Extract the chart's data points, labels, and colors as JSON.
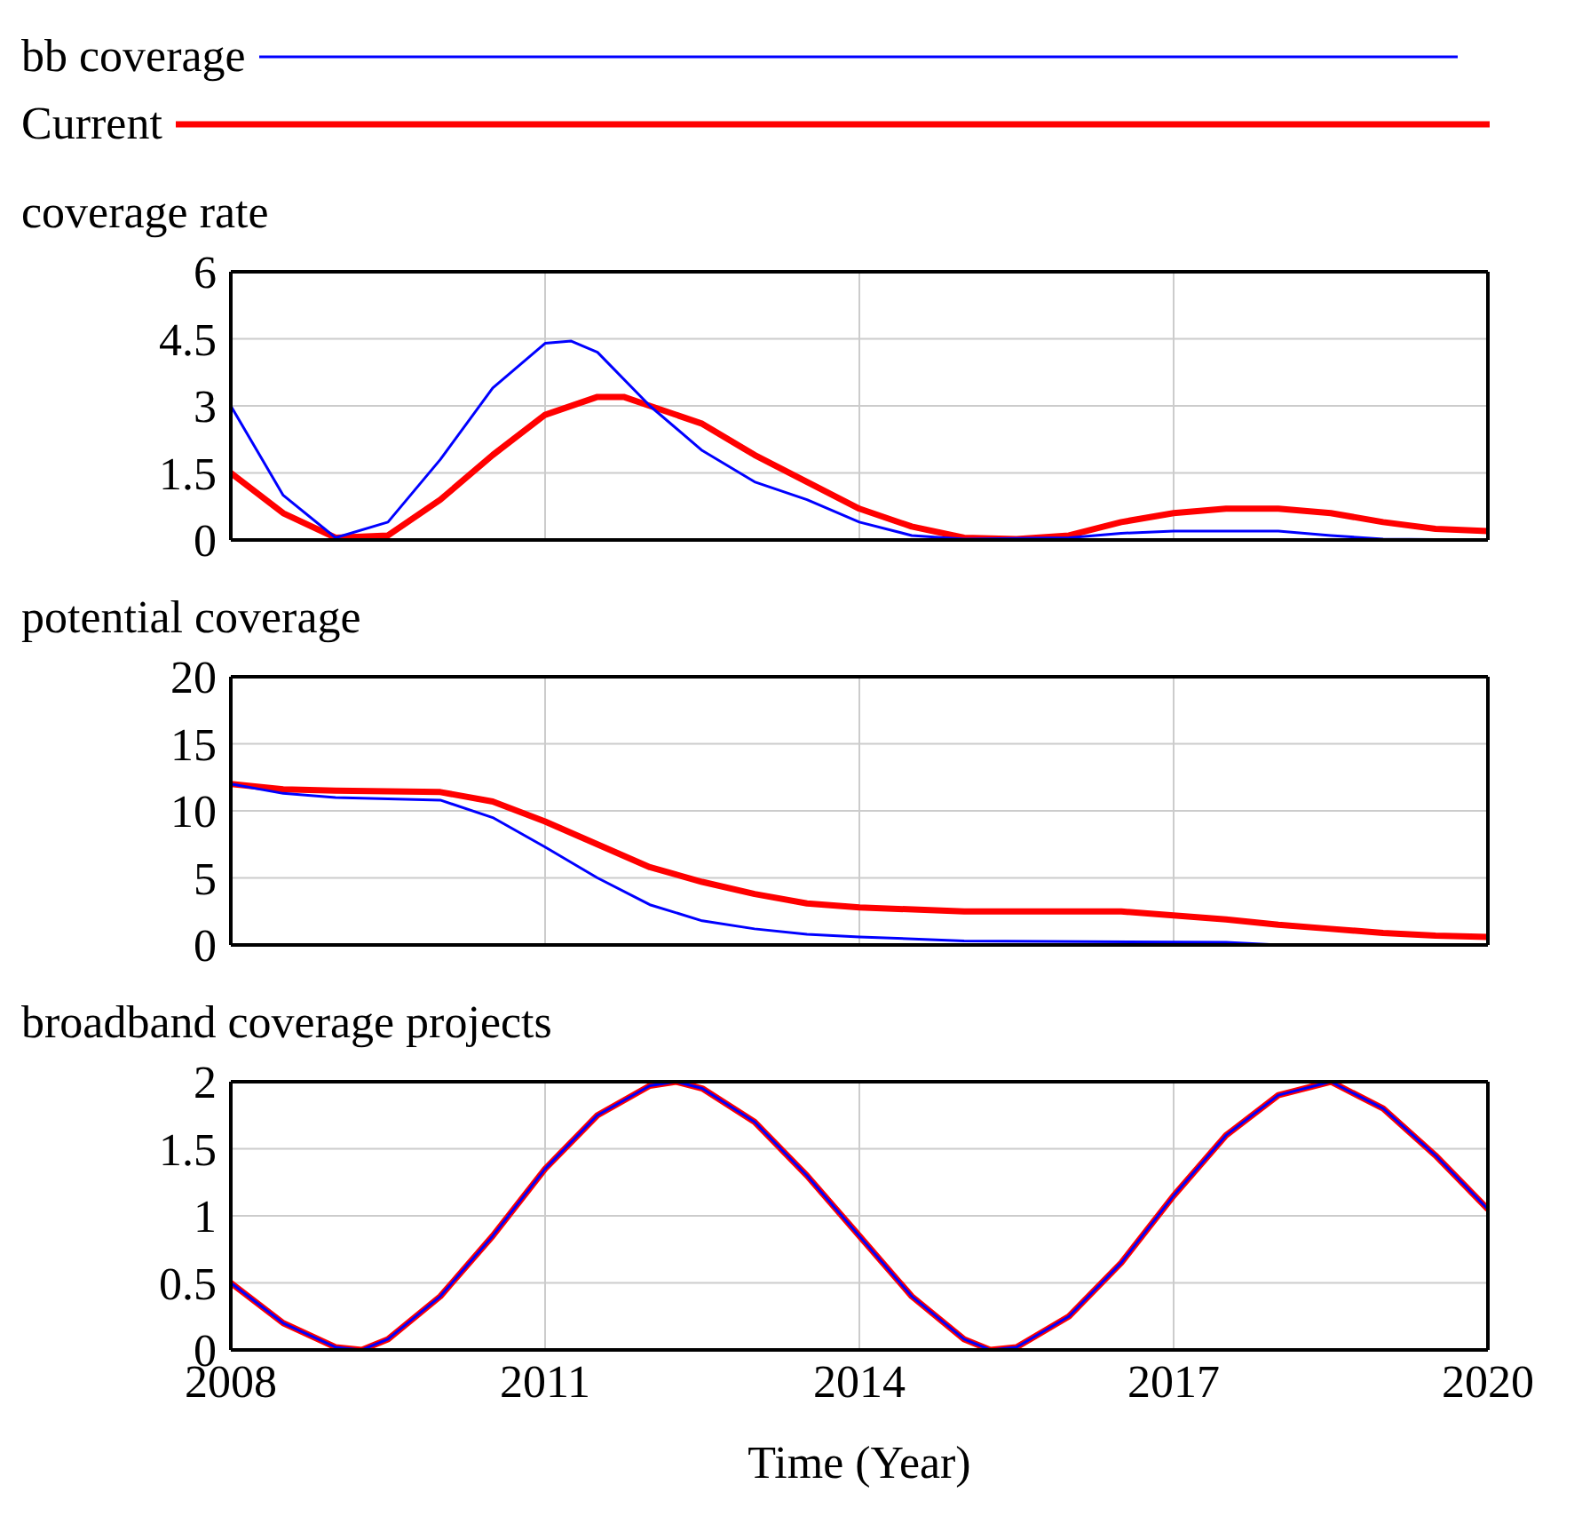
{
  "chart_data": [
    {
      "type": "line",
      "title": "coverage rate",
      "legend": "top",
      "grid": true,
      "tick_labels": "y",
      "xlim": [
        2008,
        2020
      ],
      "xticks": [
        2008,
        2011,
        2014,
        2017,
        2020
      ],
      "ylim": [
        0,
        6
      ],
      "yticks": [
        0,
        1.5,
        3,
        4.5,
        6
      ],
      "series": [
        {
          "name": "bb coverage",
          "color": "#0000ff",
          "x": [
            2008,
            2008.5,
            2009,
            2009.5,
            2010,
            2010.5,
            2011,
            2011.25,
            2011.5,
            2012,
            2012.5,
            2013,
            2013.5,
            2014,
            2014.5,
            2015,
            2016,
            2016.5,
            2017,
            2018,
            2018.5,
            2019,
            2020
          ],
          "values": [
            3.0,
            1.0,
            0.05,
            0.4,
            1.8,
            3.4,
            4.4,
            4.45,
            4.2,
            3.0,
            2.0,
            1.3,
            0.9,
            0.4,
            0.1,
            0.02,
            0.05,
            0.15,
            0.2,
            0.2,
            0.1,
            0.02,
            0
          ]
        },
        {
          "name": "Current",
          "color": "#ff0000",
          "x": [
            2008,
            2008.5,
            2009,
            2009.5,
            2010,
            2010.5,
            2011,
            2011.5,
            2011.75,
            2012,
            2012.5,
            2013,
            2013.5,
            2014,
            2014.5,
            2015,
            2015.5,
            2016,
            2016.5,
            2017,
            2017.5,
            2018,
            2018.5,
            2019,
            2019.5,
            2020
          ],
          "values": [
            1.5,
            0.6,
            0.05,
            0.1,
            0.9,
            1.9,
            2.8,
            3.2,
            3.2,
            3.0,
            2.6,
            1.9,
            1.3,
            0.7,
            0.3,
            0.05,
            0.02,
            0.1,
            0.4,
            0.6,
            0.7,
            0.7,
            0.6,
            0.4,
            0.25,
            0.2
          ]
        }
      ]
    },
    {
      "type": "line",
      "title": "potential coverage",
      "grid": true,
      "tick_labels": "y",
      "xlim": [
        2008,
        2020
      ],
      "xticks": [
        2008,
        2011,
        2014,
        2017,
        2020
      ],
      "ylim": [
        0,
        20
      ],
      "yticks": [
        0,
        5,
        10,
        15,
        20
      ],
      "series": [
        {
          "color": "#0000ff",
          "x": [
            2008,
            2008.5,
            2009,
            2010,
            2010.5,
            2011,
            2011.5,
            2012,
            2012.5,
            2013,
            2013.5,
            2014,
            2015,
            2017.5,
            2018,
            2020
          ],
          "values": [
            12,
            11.3,
            11,
            10.8,
            9.5,
            7.3,
            5,
            3,
            1.8,
            1.2,
            0.8,
            0.6,
            0.3,
            0.2,
            0,
            0
          ]
        },
        {
          "color": "#ff0000",
          "x": [
            2008,
            2008.5,
            2009,
            2010,
            2010.5,
            2011,
            2011.5,
            2012,
            2012.5,
            2013,
            2013.5,
            2014,
            2015,
            2016,
            2016.5,
            2017,
            2017.5,
            2018,
            2018.5,
            2019,
            2019.5,
            2020
          ],
          "values": [
            12,
            11.6,
            11.5,
            11.4,
            10.7,
            9.2,
            7.5,
            5.8,
            4.7,
            3.8,
            3.1,
            2.8,
            2.5,
            2.5,
            2.5,
            2.2,
            1.9,
            1.5,
            1.2,
            0.9,
            0.7,
            0.6
          ]
        }
      ]
    },
    {
      "type": "line",
      "title": "broadband coverage projects",
      "xlabel": "Time (Year)",
      "grid": true,
      "xlim": [
        2008,
        2020
      ],
      "xticks": [
        2008,
        2011,
        2014,
        2017,
        2020
      ],
      "ylim": [
        0,
        2
      ],
      "yticks": [
        0,
        0.5,
        1,
        1.5,
        2
      ],
      "series": [
        {
          "color": "#0000ff",
          "x": [
            2008,
            2008.5,
            2009,
            2009.25,
            2009.5,
            2010,
            2010.5,
            2011,
            2011.5,
            2012,
            2012.25,
            2012.5,
            2013,
            2013.5,
            2014,
            2014.5,
            2015,
            2015.25,
            2015.5,
            2016,
            2016.5,
            2017,
            2017.5,
            2018,
            2018.5,
            2019,
            2019.5,
            2020
          ],
          "values": [
            0.5,
            0.2,
            0.02,
            0,
            0.08,
            0.4,
            0.85,
            1.35,
            1.75,
            1.97,
            2,
            1.95,
            1.7,
            1.3,
            0.85,
            0.4,
            0.08,
            0,
            0.02,
            0.25,
            0.65,
            1.15,
            1.6,
            1.9,
            2,
            1.8,
            1.45,
            1.05
          ]
        },
        {
          "color": "#ff0000",
          "x": [
            2008,
            2008.5,
            2009,
            2009.25,
            2009.5,
            2010,
            2010.5,
            2011,
            2011.5,
            2012,
            2012.25,
            2012.5,
            2013,
            2013.5,
            2014,
            2014.5,
            2015,
            2015.25,
            2015.5,
            2016,
            2016.5,
            2017,
            2017.5,
            2018,
            2018.5,
            2019,
            2019.5,
            2020
          ],
          "values": [
            0.5,
            0.2,
            0.02,
            0,
            0.08,
            0.4,
            0.85,
            1.35,
            1.75,
            1.97,
            2,
            1.95,
            1.7,
            1.3,
            0.85,
            0.4,
            0.08,
            0,
            0.02,
            0.25,
            0.65,
            1.15,
            1.6,
            1.9,
            2,
            1.8,
            1.45,
            1.05
          ]
        }
      ]
    }
  ]
}
